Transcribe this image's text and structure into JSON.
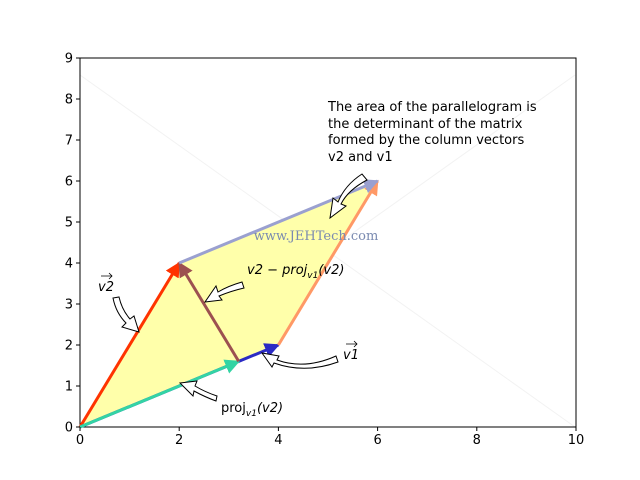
{
  "chart_data": {
    "type": "vector-diagram",
    "xlim": [
      0,
      10
    ],
    "ylim": [
      0,
      9
    ],
    "xticks": [
      "0",
      "2",
      "4",
      "6",
      "8",
      "10"
    ],
    "yticks": [
      "0",
      "1",
      "2",
      "3",
      "4",
      "5",
      "6",
      "7",
      "8",
      "9"
    ],
    "grid": false,
    "parallelogram": {
      "vertices": [
        [
          0,
          0
        ],
        [
          4,
          2
        ],
        [
          6,
          6
        ],
        [
          2,
          4
        ]
      ],
      "fill": "#ffffaa"
    },
    "vectors": [
      {
        "name": "v2",
        "from": [
          0,
          0
        ],
        "to": [
          2,
          4
        ],
        "color": "#ff3300"
      },
      {
        "name": "v1",
        "from": [
          0,
          0
        ],
        "to": [
          4,
          2
        ],
        "color": "#2b2bc4"
      },
      {
        "name": "proj",
        "from": [
          0,
          0
        ],
        "to": [
          3.2,
          1.6
        ],
        "color": "#33d4a4"
      },
      {
        "name": "perp",
        "from": [
          3.2,
          1.6
        ],
        "to": [
          2,
          4
        ],
        "color": "#9c5050"
      },
      {
        "name": "v2-shifted",
        "from": [
          4,
          2
        ],
        "to": [
          6,
          6
        ],
        "color": "#ff9966"
      },
      {
        "name": "v1-shifted",
        "from": [
          2,
          4
        ],
        "to": [
          6,
          6
        ],
        "color": "#9aa0d0"
      }
    ],
    "annotations": {
      "area_note": [
        "The area of the parallelogram is",
        "the determinant of the matrix",
        "formed by the column vectors",
        "v2 and v1"
      ],
      "v2_label": "v2",
      "v1_label": "v1",
      "perp_label_main": "v2 − proj",
      "perp_label_sub": "v1",
      "perp_label_arg": "(v2)",
      "proj_label_main": "proj",
      "proj_label_sub": "v1",
      "proj_label_arg": "(v2)"
    },
    "watermark": "www.JEHTech.com"
  }
}
